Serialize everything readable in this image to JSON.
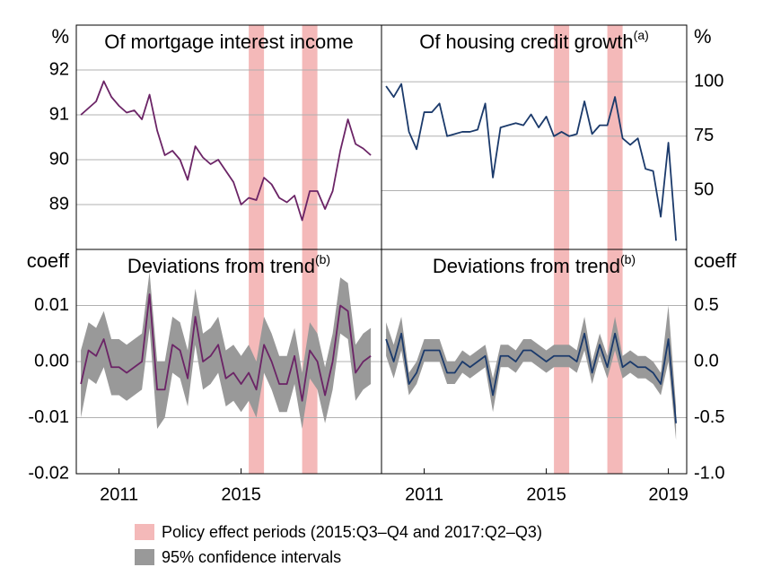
{
  "legend": {
    "shading": {
      "label": "Policy effect periods (2015:Q3–Q4 and 2017:Q2–Q3)",
      "color": "#f4b9b9"
    },
    "band": {
      "label": "95% confidence intervals",
      "color": "#999999"
    }
  },
  "shaded_periods": [
    [
      2015.25,
      2015.75
    ],
    [
      2017.0,
      2017.5
    ]
  ],
  "chart_data": [
    {
      "type": "line",
      "title": "Of mortgage interest income",
      "ylabel": "%",
      "yaxis": "left",
      "color": "#6b2466",
      "x": [
        2009.75,
        2010,
        2010.25,
        2010.5,
        2010.75,
        2011,
        2011.25,
        2011.5,
        2011.75,
        2012,
        2012.25,
        2012.5,
        2012.75,
        2013,
        2013.25,
        2013.5,
        2013.75,
        2014,
        2014.25,
        2014.5,
        2014.75,
        2015,
        2015.25,
        2015.5,
        2015.75,
        2016,
        2016.25,
        2016.5,
        2016.75,
        2017,
        2017.25,
        2017.5,
        2017.75,
        2018,
        2018.25,
        2018.5,
        2018.75,
        2019,
        2019.25
      ],
      "values": [
        91.0,
        91.15,
        91.3,
        91.75,
        91.4,
        91.2,
        91.05,
        91.1,
        90.9,
        91.45,
        90.65,
        90.1,
        90.2,
        90.0,
        89.55,
        90.3,
        90.05,
        89.9,
        90.0,
        89.75,
        89.5,
        89.0,
        89.15,
        89.1,
        89.6,
        89.45,
        89.15,
        89.05,
        89.2,
        88.65,
        89.3,
        89.3,
        88.9,
        89.3,
        90.2,
        90.9,
        90.35,
        90.25,
        90.1
      ],
      "xlim": [
        2009.6,
        2019.6
      ],
      "ylim": [
        88,
        93
      ],
      "yticks": [
        89,
        90,
        91,
        92
      ]
    },
    {
      "type": "line",
      "title": "Of housing credit growth",
      "title_note": "(a)",
      "ylabel": "%",
      "yaxis": "right",
      "color": "#1b3a6b",
      "x": [
        2009.75,
        2010,
        2010.25,
        2010.5,
        2010.75,
        2011,
        2011.25,
        2011.5,
        2011.75,
        2012,
        2012.25,
        2012.5,
        2012.75,
        2013,
        2013.25,
        2013.5,
        2013.75,
        2014,
        2014.25,
        2014.5,
        2014.75,
        2015,
        2015.25,
        2015.5,
        2015.75,
        2016,
        2016.25,
        2016.5,
        2016.75,
        2017,
        2017.25,
        2017.5,
        2017.75,
        2018,
        2018.25,
        2018.5,
        2018.75,
        2019,
        2019.25
      ],
      "values": [
        98,
        93,
        99,
        77,
        69,
        86,
        86,
        90,
        75,
        76,
        77,
        77,
        78,
        90,
        56,
        79,
        80,
        81,
        80,
        85,
        79,
        84,
        75,
        77,
        75,
        76,
        91,
        76,
        80,
        80,
        93,
        74,
        71,
        74,
        60,
        59,
        38,
        72,
        27
      ],
      "xlim": [
        2009.6,
        2019.6
      ],
      "ylim": [
        23,
        126
      ],
      "yticks": [
        50,
        75,
        100
      ]
    },
    {
      "type": "line",
      "title": "Deviations from trend",
      "title_note": "(b)",
      "ylabel": "coeff",
      "yaxis": "left",
      "color": "#6b2466",
      "x": [
        2009.75,
        2010,
        2010.25,
        2010.5,
        2010.75,
        2011,
        2011.25,
        2011.5,
        2011.75,
        2012,
        2012.25,
        2012.5,
        2012.75,
        2013,
        2013.25,
        2013.5,
        2013.75,
        2014,
        2014.25,
        2014.5,
        2014.75,
        2015,
        2015.25,
        2015.5,
        2015.75,
        2016,
        2016.25,
        2016.5,
        2016.75,
        2017,
        2017.25,
        2017.5,
        2017.75,
        2018,
        2018.25,
        2018.5,
        2018.75,
        2019,
        2019.25
      ],
      "values": [
        -0.004,
        0.002,
        0.001,
        0.004,
        -0.001,
        -0.001,
        -0.002,
        -0.001,
        0.0,
        0.012,
        -0.005,
        -0.005,
        0.003,
        0.002,
        -0.003,
        0.008,
        0.0,
        0.001,
        0.003,
        -0.003,
        -0.002,
        -0.004,
        -0.002,
        -0.005,
        0.003,
        0.0,
        -0.004,
        -0.004,
        0.001,
        -0.007,
        0.002,
        0.0,
        -0.006,
        0.0,
        0.01,
        0.009,
        -0.002,
        0.0,
        0.001
      ],
      "ci_lower": [
        -0.01,
        -0.003,
        -0.004,
        -0.001,
        -0.006,
        -0.006,
        -0.007,
        -0.006,
        -0.005,
        0.006,
        -0.012,
        -0.01,
        -0.002,
        -0.003,
        -0.008,
        0.003,
        -0.005,
        -0.004,
        -0.002,
        -0.008,
        -0.007,
        -0.009,
        -0.007,
        -0.01,
        -0.002,
        -0.005,
        -0.009,
        -0.009,
        -0.004,
        -0.012,
        -0.003,
        -0.005,
        -0.011,
        -0.005,
        0.005,
        0.004,
        -0.007,
        -0.005,
        -0.004
      ],
      "ci_upper": [
        0.002,
        0.007,
        0.006,
        0.009,
        0.004,
        0.004,
        0.003,
        0.004,
        0.005,
        0.016,
        0.0,
        0.0,
        0.008,
        0.007,
        0.002,
        0.013,
        0.005,
        0.006,
        0.008,
        0.002,
        0.003,
        0.001,
        0.003,
        0.0,
        0.008,
        0.005,
        0.001,
        0.001,
        0.006,
        -0.002,
        0.007,
        0.005,
        -0.001,
        0.005,
        0.015,
        0.014,
        0.003,
        0.005,
        0.006
      ],
      "xlim": [
        2009.6,
        2019.6
      ],
      "ylim": [
        -0.02,
        0.02
      ],
      "yticks": [
        -0.02,
        -0.01,
        {
          "value": 0,
          "label": "0.00"
        },
        0.01
      ],
      "xticks": [
        2011,
        2015
      ]
    },
    {
      "type": "line",
      "title": "Deviations from trend",
      "title_note": "(b)",
      "ylabel": "coeff",
      "yaxis": "right",
      "color": "#1b3a6b",
      "x": [
        2009.75,
        2010,
        2010.25,
        2010.5,
        2010.75,
        2011,
        2011.25,
        2011.5,
        2011.75,
        2012,
        2012.25,
        2012.5,
        2012.75,
        2013,
        2013.25,
        2013.5,
        2013.75,
        2014,
        2014.25,
        2014.5,
        2014.75,
        2015,
        2015.25,
        2015.5,
        2015.75,
        2016,
        2016.25,
        2016.5,
        2016.75,
        2017,
        2017.25,
        2017.5,
        2017.75,
        2018,
        2018.25,
        2018.5,
        2018.75,
        2019,
        2019.25
      ],
      "values": [
        0.2,
        0.0,
        0.25,
        -0.2,
        -0.1,
        0.1,
        0.1,
        0.1,
        -0.1,
        -0.1,
        0.0,
        -0.05,
        0.0,
        0.05,
        -0.3,
        0.05,
        0.05,
        0.0,
        0.1,
        0.1,
        0.05,
        0.0,
        0.05,
        0.05,
        0.05,
        0.0,
        0.25,
        -0.1,
        0.15,
        -0.05,
        0.25,
        -0.05,
        0.0,
        -0.05,
        -0.05,
        -0.1,
        -0.2,
        0.2,
        -0.55
      ],
      "ci_lower": [
        0.05,
        -0.15,
        0.1,
        -0.3,
        -0.2,
        0.0,
        0.0,
        0.0,
        -0.2,
        -0.2,
        -0.1,
        -0.15,
        -0.1,
        -0.05,
        -0.45,
        -0.05,
        -0.05,
        -0.1,
        0.0,
        0.0,
        -0.05,
        -0.1,
        -0.05,
        -0.05,
        -0.05,
        -0.1,
        0.1,
        -0.2,
        0.05,
        -0.15,
        0.1,
        -0.15,
        -0.1,
        -0.15,
        -0.15,
        -0.2,
        -0.3,
        0.0,
        -0.7
      ],
      "ci_upper": [
        0.35,
        0.15,
        0.4,
        -0.1,
        0.0,
        0.2,
        0.2,
        0.2,
        0.0,
        0.0,
        0.1,
        0.05,
        0.1,
        0.15,
        -0.15,
        0.15,
        0.15,
        0.1,
        0.2,
        0.2,
        0.15,
        0.1,
        0.15,
        0.15,
        0.15,
        0.1,
        0.4,
        0.0,
        0.25,
        0.05,
        0.4,
        0.05,
        0.1,
        0.05,
        0.05,
        0.0,
        -0.1,
        0.5,
        -0.4
      ],
      "xlim": [
        2009.6,
        2019.6
      ],
      "ylim": [
        -1,
        1
      ],
      "yticks": [
        {
          "value": -1,
          "label": "-1.0"
        },
        -0.5,
        {
          "value": 0,
          "label": "0.0"
        },
        0.5
      ],
      "xticks": [
        2011,
        2015,
        2019
      ]
    }
  ]
}
